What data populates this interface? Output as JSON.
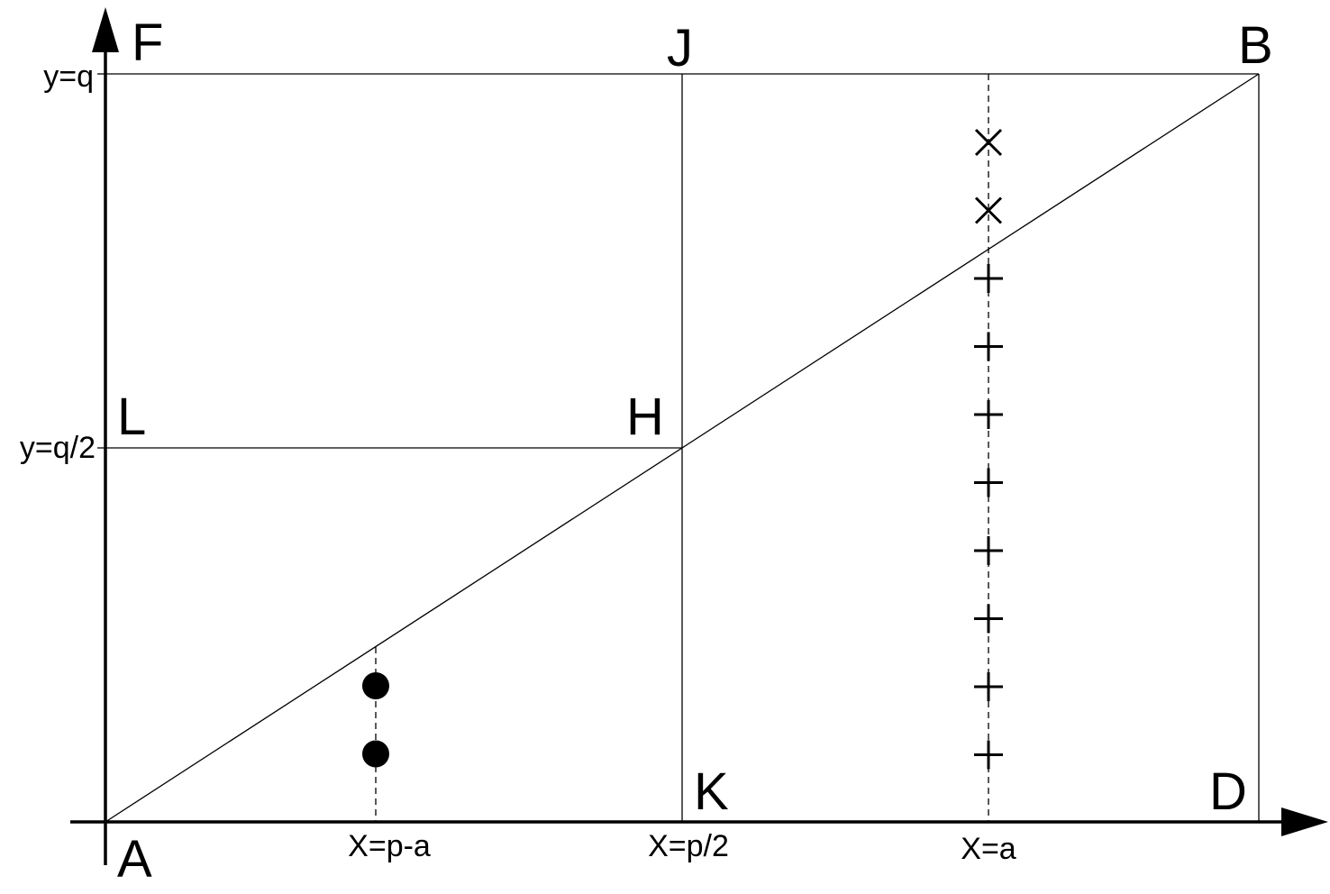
{
  "points": {
    "A": "A",
    "B": "B",
    "D": "D",
    "F": "F",
    "H": "H",
    "J": "J",
    "K": "K",
    "L": "L"
  },
  "y_ticks": {
    "q": "y=q",
    "q_half": "y=q/2"
  },
  "x_ticks": {
    "p_minus_a": "X=p-a",
    "p_half": "X=p/2",
    "a": "X=a"
  },
  "markers": {
    "cross_count": 2,
    "plus_count": 8,
    "dot_count": 2
  }
}
